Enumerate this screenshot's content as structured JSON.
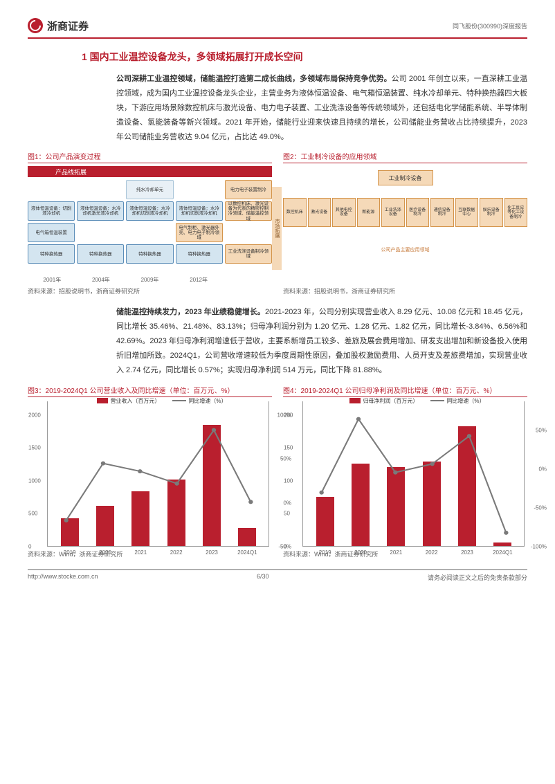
{
  "header": {
    "company": "浙商证券",
    "right": "同飞股份(300990)深度报告"
  },
  "section": {
    "title": "1 国内工业温控设备龙头，多领域拓展打开成长空间"
  },
  "para1": {
    "bold": "公司深耕工业温控领域，储能温控打造第二成长曲线，多领域布局保持竞争优势。",
    "text": "公司 2001 年创立以来，一直深耕工业温控领域，成为国内工业温控设备龙头企业，主营业务为液体恒温设备、电气箱恒温装置、纯水冷却单元、特种换热器四大板块，下游应用场景除数控机床与激光设备、电力电子装置、工业洗涤设备等传统领域外，还包括电化学储能系统、半导体制造设备、氢能装备等新兴领域。2021 年开始，储能行业迎来快速且持续的增长，公司储能业务营收占比持续提升，2023 年公司储能业务营收达 9.04 亿元，占比达 49.0%。"
  },
  "fig1": {
    "title": "图1：公司产品演变过程",
    "banner": "产品线拓展",
    "arrow": "市场拓展",
    "source": "资料来源：招股说明书，浙商证券研究所",
    "years": [
      "2001年",
      "2004年",
      "2009年",
      "2012年",
      ""
    ],
    "grid": [
      [
        {
          "t": "",
          "c": "c-empty"
        },
        {
          "t": "",
          "c": "c-empty"
        },
        {
          "t": "纯水冷却单元",
          "c": "c-ltblue"
        },
        {
          "t": "",
          "c": "c-empty"
        },
        {
          "t": "电力电子装置制冷",
          "c": "c-orange"
        }
      ],
      [
        {
          "t": "液体恒温设备：切削液冷却机",
          "c": "c-blue"
        },
        {
          "t": "液体恒温设备：水冷却机激光液冷却机",
          "c": "c-blue"
        },
        {
          "t": "液体恒温设备：水冷却机切削液冷却机",
          "c": "c-blue"
        },
        {
          "t": "液体恒温设备：水冷却机切削液冷却机",
          "c": "c-blue"
        },
        {
          "t": "以数控机床、激光设备为代表的精密控制冷领域、储能温控领域",
          "c": "c-orange"
        }
      ],
      [
        {
          "t": "电气箱恒温装置",
          "c": "c-blue"
        },
        {
          "t": "",
          "c": "c-empty"
        },
        {
          "t": "",
          "c": "c-empty"
        },
        {
          "t": "电气制柜、激光器外壳、电力电子制冷领域",
          "c": "c-orange"
        },
        {
          "t": "",
          "c": "c-empty"
        }
      ],
      [
        {
          "t": "特种换热器",
          "c": "c-blue"
        },
        {
          "t": "特种换热器",
          "c": "c-blue"
        },
        {
          "t": "特种换热器",
          "c": "c-blue"
        },
        {
          "t": "特种换热器",
          "c": "c-blue"
        },
        {
          "t": "工业洗涤设备制冷领域",
          "c": "c-orange"
        }
      ]
    ]
  },
  "fig2": {
    "title": "图2：工业制冷设备的应用领域",
    "top": "工业制冷设备",
    "boxes": [
      "数控机床",
      "激光设备",
      "其他电控设备",
      "新能源",
      "工业洗涤设备",
      "医疗设备制冷",
      "通信设备制冷",
      "互联数据中心",
      "娱乐设备制冷",
      "化工反应等化工设备制冷"
    ],
    "note": "公司产品主要应用领域",
    "source": "资料来源：招股说明书，浙商证券研究所"
  },
  "para2": {
    "bold": "储能温控持续发力，2023 年业绩稳健增长。",
    "text": "2021-2023 年，公司分别实现营业收入 8.29 亿元、10.08 亿元和 18.45 亿元，同比增长 35.46%、21.48%、83.13%；归母净利润分别为 1.20 亿元、1.28 亿元、1.82 亿元，同比增长-3.84%、6.56%和 42.69%。2023 年归母净利润增速低于营收，主要系新增员工较多、差旅及展会费用增加、研发支出增加和新设备投入使用折旧增加所致。2024Q1，公司营收增速较低为季度周期性原因，叠加股权激励费用、人员开支及差旅费增加，实现营业收入 2.74 亿元，同比增长 0.57%；实现归母净利润 514 万元，同比下降 81.88%。"
  },
  "fig3": {
    "title": "图3：2019-2024Q1 公司营业收入及同比增速（单位：百万元、%）",
    "legend": [
      "营业收入（百万元）",
      "同比增速（%）"
    ],
    "source": "资料来源：Wind，浙商证券研究所",
    "x": [
      "2019",
      "2020",
      "2021",
      "2022",
      "2023",
      "2024Q1"
    ],
    "y_ticks": [
      0,
      500,
      1000,
      1500,
      2000
    ],
    "y2_ticks": [
      -50,
      0,
      50,
      100
    ],
    "y_max": 2000,
    "bar_color": "#b91f2e",
    "line_color": "#7a7a7a",
    "bars": [
      420,
      610,
      830,
      1010,
      1845,
      274
    ],
    "line": [
      -20,
      45,
      36,
      22,
      83,
      1
    ]
  },
  "fig4": {
    "title": "图4：2019-2024Q1 公司归母净利润及同比增速（单位：百万元、%）",
    "legend": [
      "归母净利润（百万元）",
      "同比增速（%）"
    ],
    "source": "资料来源：Wind，浙商证券研究所",
    "x": [
      "2019",
      "2020",
      "2021",
      "2022",
      "2023",
      "2024Q1"
    ],
    "y_ticks": [
      0,
      50,
      100,
      150,
      200
    ],
    "y2_ticks": [
      -100,
      -50,
      0,
      50
    ],
    "y_max": 200,
    "bar_color": "#b91f2e",
    "line_color": "#7a7a7a",
    "bars": [
      75,
      125,
      120,
      128,
      182,
      5
    ],
    "line": [
      -30,
      65,
      -4,
      7,
      43,
      -82
    ]
  },
  "footer": {
    "url": "http://www.stocke.com.cn",
    "page": "6/30",
    "disclaimer": "请务必阅读正文之后的免责条款部分"
  }
}
